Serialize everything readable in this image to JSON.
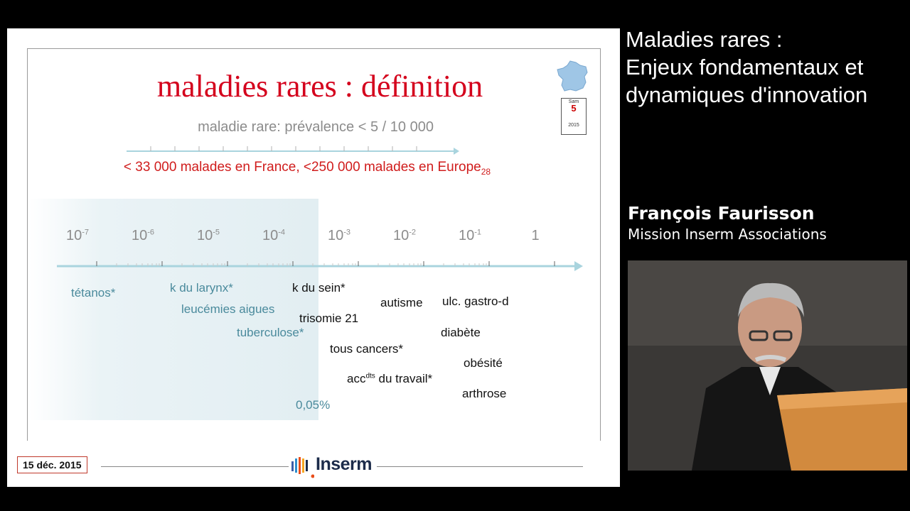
{
  "slide": {
    "title": "maladies rares : définition",
    "subtitle": "maladie rare: prévalence < 5 / 10 000",
    "red_line": "< 33 000 malades en France, <250 000 malades en Europe",
    "red_line_sub": "28",
    "axis_ticks": [
      {
        "base": "10",
        "exp": "-7"
      },
      {
        "base": "10",
        "exp": "-6"
      },
      {
        "base": "10",
        "exp": "-5"
      },
      {
        "base": "10",
        "exp": "-4"
      },
      {
        "base": "10",
        "exp": "-3"
      },
      {
        "base": "10",
        "exp": "-2"
      },
      {
        "base": "10",
        "exp": "-1"
      },
      {
        "base": "1",
        "exp": ""
      }
    ],
    "diseases": {
      "tetanos": "tétanos*",
      "larynx": "k du larynx*",
      "leucemies": "leucémies aigues",
      "tuberculose": "tuberculose*",
      "sein": "k du sein*",
      "trisomie": "trisomie 21",
      "autisme": "autisme",
      "ulc": "ulc. gastro-d",
      "diabete": "diabète",
      "cancers": "tous cancers*",
      "obesite": "obésité",
      "acc_a": "acc",
      "acc_sup": "dts",
      "acc_b": " du travail*",
      "arthrose": "arthrose",
      "threshold": "0,05%"
    },
    "date": "15 déc. 2015",
    "logo": "Inserm",
    "calendar": {
      "month": "Sam",
      "day": "5",
      "year": "2015"
    }
  },
  "side": {
    "title_lines": [
      "Maladies rares :",
      "Enjeux fondamentaux et",
      "dynamiques d'innovation"
    ],
    "speaker_name": "François Faurisson",
    "speaker_role": "Mission Inserm Associations"
  },
  "colors": {
    "accent_red": "#d4001c",
    "axis_blue": "#9ccfdc",
    "label_blue": "#4a8a9c"
  }
}
